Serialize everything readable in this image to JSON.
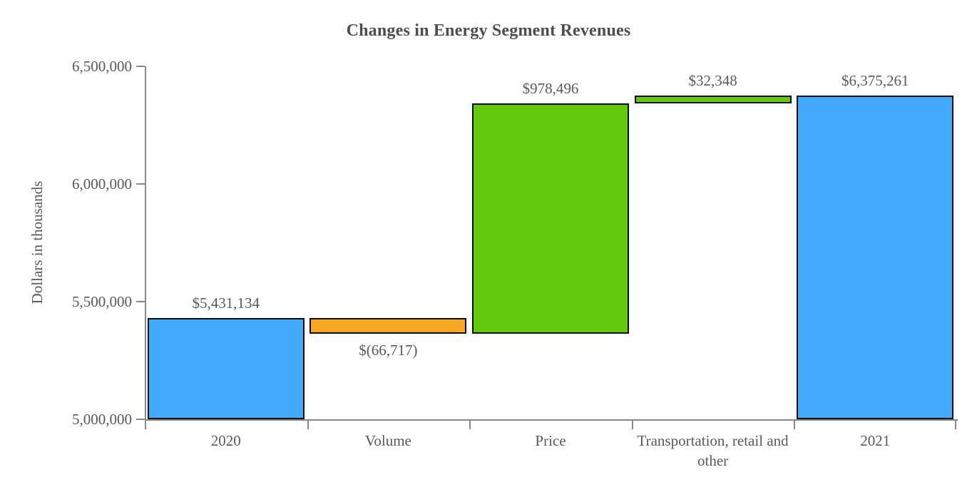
{
  "chart_data": {
    "type": "bar",
    "subtype": "waterfall",
    "title": "Changes in Energy Segment Revenues",
    "ylabel": "Dollars in thousands",
    "xlabel": "",
    "ylim": [
      5000000,
      6500000
    ],
    "grid": "off",
    "legend": "none",
    "yticks": [
      {
        "value": 6500000,
        "label": "6,500,000"
      },
      {
        "value": 6000000,
        "label": "6,000,000"
      },
      {
        "value": 5500000,
        "label": "5,500,000"
      },
      {
        "value": 5000000,
        "label": "5,000,000"
      }
    ],
    "categories": [
      "2020",
      "Volume",
      "Price",
      "Transportation, retail and other",
      "2021"
    ],
    "bars": [
      {
        "category": "2020",
        "value": 5431134,
        "value_label": "$5,431,134",
        "start": 5000000,
        "end": 5431134,
        "color": "blue",
        "label_position": "above"
      },
      {
        "category": "Volume",
        "value": -66717,
        "value_label": "$(66,717)",
        "start": 5364417,
        "end": 5431134,
        "color": "orange",
        "label_position": "below"
      },
      {
        "category": "Price",
        "value": 978496,
        "value_label": "$978,496",
        "start": 5364417,
        "end": 6342913,
        "color": "green",
        "label_position": "above"
      },
      {
        "category": "Transportation, retail and other",
        "value": 32348,
        "value_label": "$32,348",
        "start": 6342913,
        "end": 6375261,
        "color": "green",
        "label_position": "above"
      },
      {
        "category": "2021",
        "value": 6375261,
        "value_label": "$6,375,261",
        "start": 5000000,
        "end": 6375261,
        "color": "blue",
        "label_position": "above"
      }
    ],
    "colors": {
      "blue": "#41aafa",
      "orange": "#f7a723",
      "green": "#63c90c",
      "axis": "#878787",
      "text": "#595959",
      "bar_border": "#0d0d0d"
    }
  }
}
